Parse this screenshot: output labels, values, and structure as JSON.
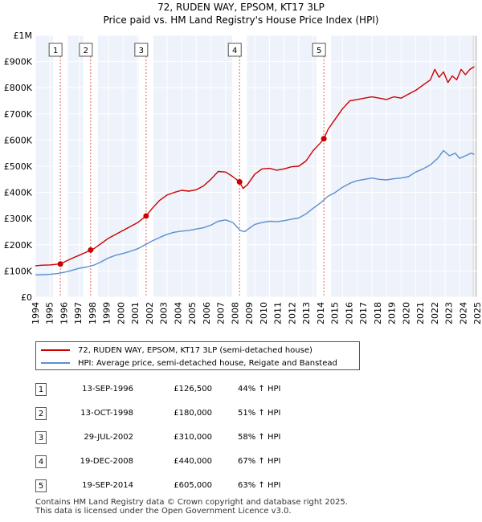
{
  "chart_data": {
    "type": "line",
    "title": "72, RUDEN WAY, EPSOM, KT17 3LP",
    "subtitle": "Price paid vs. HM Land Registry's House Price Index (HPI)",
    "xlim": [
      1995,
      2025.2
    ],
    "ylim": [
      0,
      1000000
    ],
    "y_ticks": [
      0,
      100000,
      200000,
      300000,
      400000,
      500000,
      600000,
      700000,
      800000,
      900000,
      1000000
    ],
    "y_tick_labels": [
      "£0",
      "£100K",
      "£200K",
      "£300K",
      "£400K",
      "£500K",
      "£600K",
      "£700K",
      "£800K",
      "£900K",
      "£1M"
    ],
    "x_ticks": [
      1994,
      1995,
      1996,
      1997,
      1998,
      1999,
      2000,
      2001,
      2002,
      2003,
      2004,
      2005,
      2006,
      2007,
      2008,
      2009,
      2010,
      2011,
      2012,
      2013,
      2014,
      2015,
      2016,
      2017,
      2018,
      2019,
      2020,
      2021,
      2022,
      2023,
      2024,
      2025
    ],
    "x_tick_labels": [
      "1994",
      "1995",
      "1996",
      "1997",
      "1998",
      "1999",
      "2000",
      "2001",
      "2002",
      "2003",
      "2004",
      "2005",
      "2006",
      "2007",
      "2008",
      "2009",
      "2010",
      "2011",
      "2012",
      "2013",
      "2014",
      "2015",
      "2016",
      "2017",
      "2018",
      "2019",
      "2020",
      "2021",
      "2022",
      "2023",
      "2024",
      "2025"
    ],
    "grid": true,
    "legend_position": "below",
    "series": [
      {
        "name": "72, RUDEN WAY, EPSOM, KT17 3LP (semi-detached house)",
        "color": "#cc0000",
        "x": [
          1995.0,
          1995.5,
          1996.0,
          1996.5,
          1996.7,
          1997.0,
          1997.5,
          1998.0,
          1998.5,
          1998.78,
          1999.0,
          1999.5,
          2000.0,
          2000.5,
          2001.0,
          2001.5,
          2002.0,
          2002.57,
          2003.0,
          2003.5,
          2004.0,
          2004.5,
          2005.0,
          2005.5,
          2006.0,
          2006.5,
          2007.0,
          2007.5,
          2008.0,
          2008.5,
          2008.96,
          2009.2,
          2009.5,
          2010.0,
          2010.5,
          2011.0,
          2011.5,
          2012.0,
          2012.5,
          2013.0,
          2013.5,
          2014.0,
          2014.5,
          2014.72,
          2015.0,
          2015.5,
          2016.0,
          2016.5,
          2017.0,
          2017.5,
          2018.0,
          2018.5,
          2019.0,
          2019.5,
          2020.0,
          2020.5,
          2021.0,
          2021.5,
          2022.0,
          2022.3,
          2022.6,
          2022.9,
          2023.2,
          2023.5,
          2023.8,
          2024.1,
          2024.4,
          2024.7,
          2025.0
        ],
        "values": [
          120000,
          122000,
          123000,
          126000,
          126500,
          135000,
          148000,
          160000,
          172000,
          180000,
          185000,
          205000,
          225000,
          240000,
          255000,
          270000,
          285000,
          310000,
          340000,
          370000,
          390000,
          400000,
          408000,
          405000,
          410000,
          425000,
          450000,
          480000,
          478000,
          460000,
          440000,
          415000,
          430000,
          470000,
          490000,
          492000,
          485000,
          490000,
          498000,
          500000,
          520000,
          560000,
          590000,
          605000,
          640000,
          680000,
          720000,
          750000,
          755000,
          760000,
          765000,
          760000,
          755000,
          765000,
          760000,
          775000,
          790000,
          810000,
          830000,
          870000,
          840000,
          860000,
          820000,
          845000,
          830000,
          870000,
          850000,
          870000,
          880000
        ]
      },
      {
        "name": "HPI: Average price, semi-detached house, Reigate and Banstead",
        "color": "#5b8fd0",
        "x": [
          1995.0,
          1995.5,
          1996.0,
          1996.5,
          1997.0,
          1997.5,
          1998.0,
          1998.5,
          1999.0,
          1999.5,
          2000.0,
          2000.5,
          2001.0,
          2001.5,
          2002.0,
          2002.5,
          2003.0,
          2003.5,
          2004.0,
          2004.5,
          2005.0,
          2005.5,
          2006.0,
          2006.5,
          2007.0,
          2007.5,
          2008.0,
          2008.5,
          2009.0,
          2009.3,
          2009.6,
          2010.0,
          2010.5,
          2011.0,
          2011.5,
          2012.0,
          2012.5,
          2013.0,
          2013.5,
          2014.0,
          2014.5,
          2015.0,
          2015.5,
          2016.0,
          2016.5,
          2017.0,
          2017.5,
          2018.0,
          2018.5,
          2019.0,
          2019.5,
          2020.0,
          2020.5,
          2021.0,
          2021.5,
          2022.0,
          2022.5,
          2022.9,
          2023.3,
          2023.7,
          2024.0,
          2024.4,
          2024.8,
          2025.0
        ],
        "values": [
          85000,
          86000,
          87000,
          90000,
          95000,
          102000,
          110000,
          115000,
          122000,
          135000,
          150000,
          160000,
          167000,
          175000,
          185000,
          200000,
          215000,
          228000,
          240000,
          248000,
          252000,
          255000,
          260000,
          265000,
          275000,
          290000,
          295000,
          285000,
          255000,
          250000,
          262000,
          278000,
          285000,
          290000,
          288000,
          292000,
          298000,
          302000,
          318000,
          340000,
          360000,
          385000,
          400000,
          420000,
          435000,
          445000,
          450000,
          455000,
          450000,
          448000,
          452000,
          455000,
          460000,
          478000,
          490000,
          505000,
          530000,
          560000,
          540000,
          550000,
          530000,
          540000,
          550000,
          545000
        ]
      }
    ],
    "sales": [
      {
        "label": "1",
        "x": 1996.71,
        "value": 126500
      },
      {
        "label": "2",
        "x": 1998.78,
        "value": 180000
      },
      {
        "label": "3",
        "x": 2002.57,
        "value": 310000
      },
      {
        "label": "4",
        "x": 2008.96,
        "value": 440000
      },
      {
        "label": "5",
        "x": 2014.72,
        "value": 605000
      }
    ]
  },
  "legend": {
    "property_label": "72, RUDEN WAY, EPSOM, KT17 3LP (semi-detached house)",
    "hpi_label": "HPI: Average price, semi-detached house, Reigate and Banstead",
    "property_color": "#cc0000",
    "hpi_color": "#5b8fd0"
  },
  "sales_table": [
    {
      "num": "1",
      "date": "13-SEP-1996",
      "price": "£126,500",
      "hpi": "44% ↑ HPI"
    },
    {
      "num": "2",
      "date": "13-OCT-1998",
      "price": "£180,000",
      "hpi": "51% ↑ HPI"
    },
    {
      "num": "3",
      "date": "29-JUL-2002",
      "price": "£310,000",
      "hpi": "58% ↑ HPI"
    },
    {
      "num": "4",
      "date": "19-DEC-2008",
      "price": "£440,000",
      "hpi": "67% ↑ HPI"
    },
    {
      "num": "5",
      "date": "19-SEP-2014",
      "price": "£605,000",
      "hpi": "63% ↑ HPI"
    }
  ],
  "footer": {
    "line1": "Contains HM Land Registry data © Crown copyright and database right 2025.",
    "line2": "This data is licensed under the Open Government Licence v3.0."
  }
}
